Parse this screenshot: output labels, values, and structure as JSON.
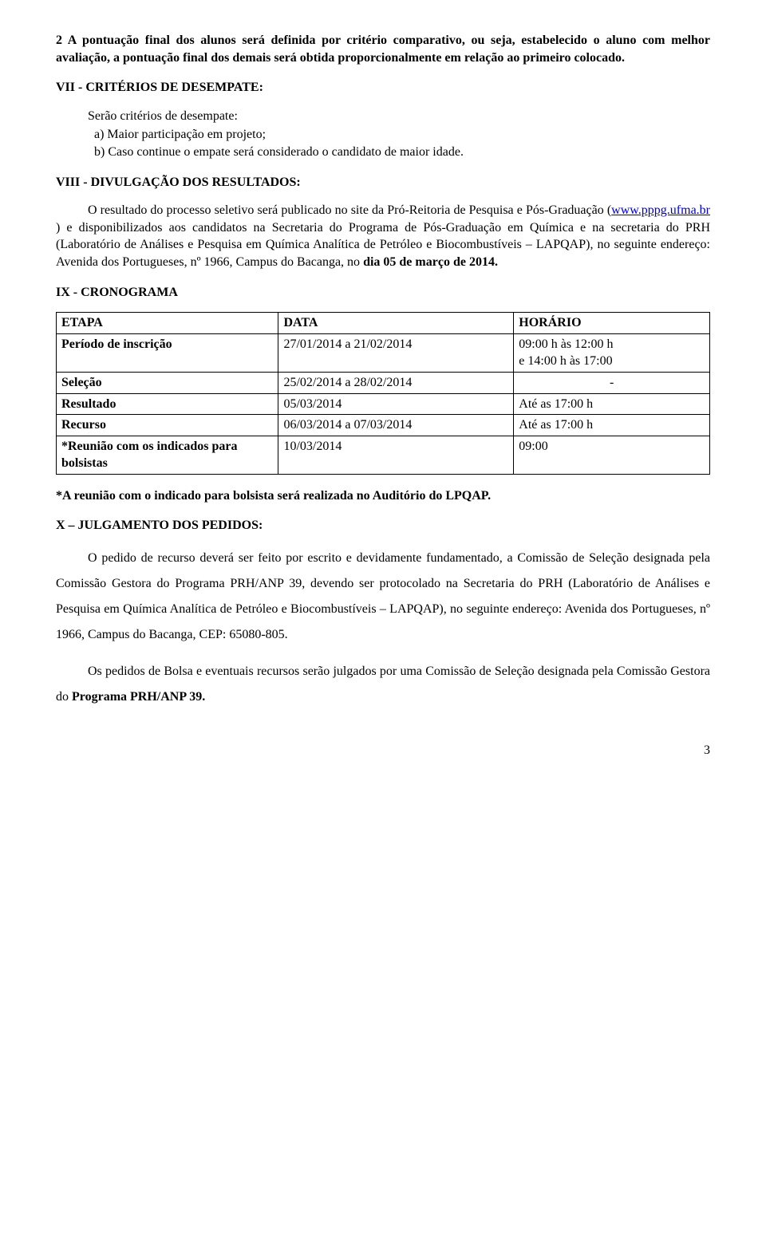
{
  "p1_prefix": "2 ",
  "p1": "A pontuação final dos alunos será definida por critério comparativo, ou seja, estabelecido o aluno com melhor avaliação, a pontuação final dos demais será obtida proporcionalmente em relação ao primeiro colocado.",
  "h7": "VII - CRITÉRIOS DE DESEMPATE:",
  "p2": "Serão critérios de desempate:",
  "p2a": "a)  Maior participação em projeto;",
  "p2b": "b)  Caso continue o empate será considerado o candidato de maior idade.",
  "h8": "VIII - DIVULGAÇÃO DOS RESULTADOS:",
  "p3a": "O resultado do processo seletivo será publicado no site da Pró-Reitoria de Pesquisa e Pós-Graduação (",
  "p3_link1": "www.pppg.ufma.br",
  "p3b": " ) e disponibilizados aos candidatos na Secretaria do Programa de Pós-Graduação em Química e na secretaria do PRH (Laboratório de Análises e Pesquisa em Química Analítica de Petróleo e Biocombustíveis – LAPQAP), no seguinte endereço: Avenida dos Portugueses, nº 1966, Campus do Bacanga, no ",
  "p3c": "dia 05 de março de 2014.",
  "h9": "IX - CRONOGRAMA",
  "table": {
    "columns": [
      "ETAPA",
      "DATA",
      "HORÁRIO"
    ],
    "col_widths": [
      "34%",
      "36%",
      "30%"
    ],
    "rows": [
      [
        "Período de inscrição",
        "27/01/2014 a 21/02/2014",
        "09:00 h às 12:00 h\n e 14:00 h às 17:00"
      ],
      [
        "Seleção",
        "25/02/2014 a 28/02/2014",
        "-"
      ],
      [
        "Resultado",
        "05/03/2014",
        "Até as 17:00 h"
      ],
      [
        "Recurso",
        "06/03/2014 a 07/03/2014",
        "Até as 17:00 h"
      ],
      [
        "*Reunião com os indicados para bolsistas",
        "10/03/2014",
        "09:00"
      ]
    ]
  },
  "p4": "*A reunião com o indicado para bolsista será realizada no Auditório do LPQAP.",
  "h10": "X – JULGAMENTO DOS PEDIDOS:",
  "p5": "O pedido de recurso deverá ser feito por escrito e devidamente fundamentado, a Comissão de Seleção designada pela Comissão Gestora do Programa PRH/ANP 39, devendo ser protocolado na Secretaria do PRH (Laboratório de Análises e Pesquisa em Química Analítica de Petróleo e Biocombustíveis – LAPQAP), no seguinte endereço: Avenida dos Portugueses, nº 1966, Campus do Bacanga, CEP: 65080-805.",
  "p6a": "Os pedidos de Bolsa e eventuais recursos serão julgados por uma Comissão de Seleção designada pela Comissão Gestora do ",
  "p6b": "Programa PRH/ANP 39.",
  "page_number": "3"
}
